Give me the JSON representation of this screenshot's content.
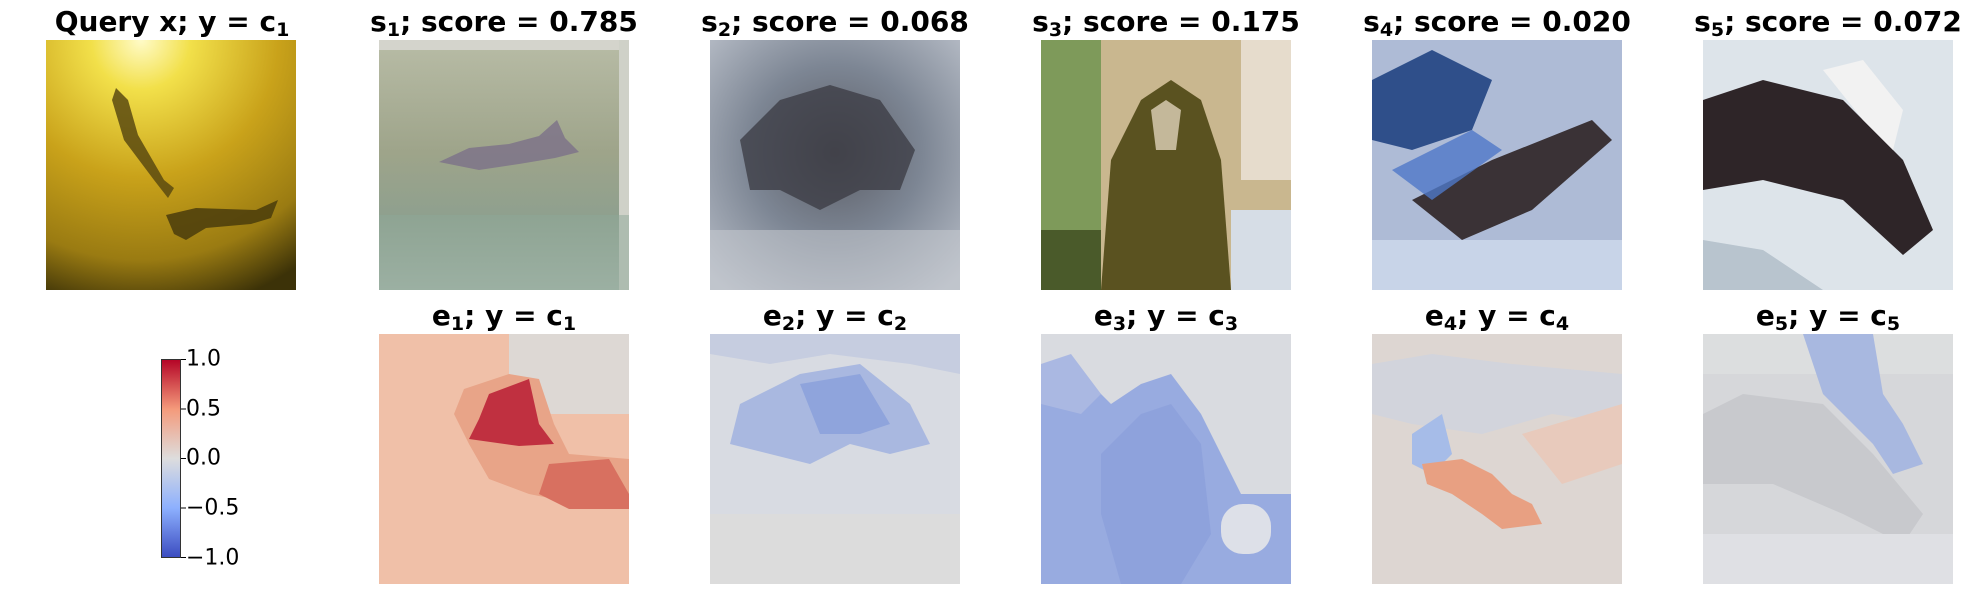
{
  "colors": {
    "cmap_neg": "#3b4cc0",
    "cmap_mid": "#dddddd",
    "cmap_pos": "#b40426"
  },
  "query": {
    "title_prefix": "Query x; y",
    "title_eq": " = c",
    "title_sub": "1"
  },
  "samples": [
    {
      "letter": "s",
      "idx": "1",
      "score_label": "; score = 0.785"
    },
    {
      "letter": "s",
      "idx": "2",
      "score_label": "; score = 0.068"
    },
    {
      "letter": "s",
      "idx": "3",
      "score_label": "; score = 0.175"
    },
    {
      "letter": "s",
      "idx": "4",
      "score_label": "; score = 0.020"
    },
    {
      "letter": "s",
      "idx": "5",
      "score_label": "; score = 0.072"
    }
  ],
  "explanations": [
    {
      "letter": "e",
      "idx": "1",
      "mid": "; y = c",
      "cidx": "1"
    },
    {
      "letter": "e",
      "idx": "2",
      "mid": "; y = c",
      "cidx": "2"
    },
    {
      "letter": "e",
      "idx": "3",
      "mid": "; y = c",
      "cidx": "3"
    },
    {
      "letter": "e",
      "idx": "4",
      "mid": "; y = c",
      "cidx": "4"
    },
    {
      "letter": "e",
      "idx": "5",
      "mid": "; y = c",
      "cidx": "5"
    }
  ],
  "colorbar": {
    "ticks": [
      "1.0",
      "0.5",
      "0.0",
      "−0.5",
      "−1.0"
    ],
    "range": [
      -1.0,
      1.0
    ]
  }
}
